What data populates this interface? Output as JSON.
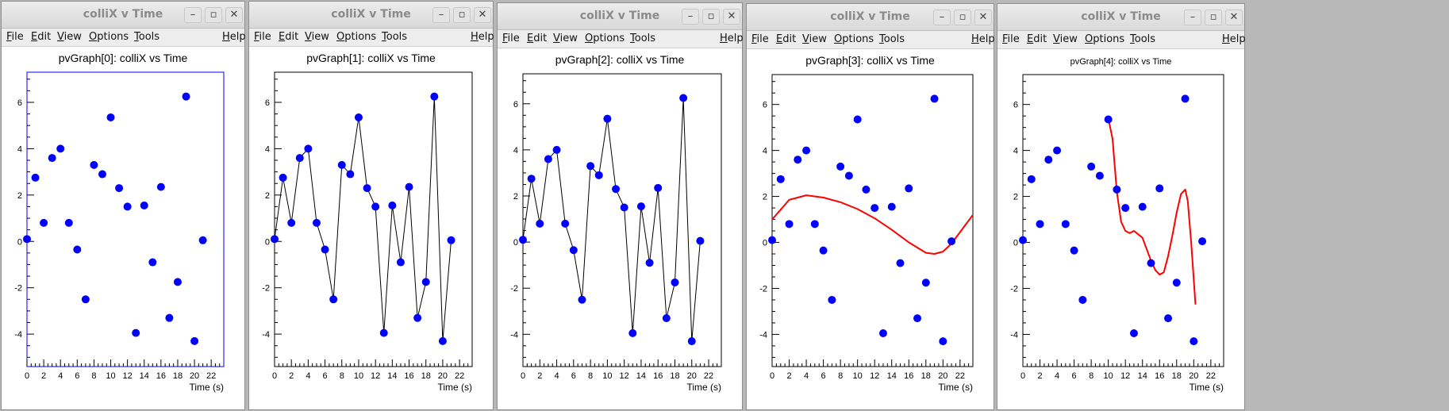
{
  "window_title": "colliX v Time",
  "menu": [
    "File",
    "Edit",
    "View",
    "Options",
    "Tools"
  ],
  "help_label": "Help",
  "controls": {
    "minimize": "–",
    "maximize": "▫",
    "close": "✕"
  },
  "colors": {
    "marker": "#0000ff",
    "fit": "#ff0000",
    "line": "#000000",
    "frame_blue": "#0000ff"
  },
  "panels": [
    {
      "title": "pvGraph[0]: colliX vs Time",
      "style": "markers-frame-blue"
    },
    {
      "title": "pvGraph[1]: colliX vs Time",
      "style": "markers-line"
    },
    {
      "title": "pvGraph[2]: colliX vs Time",
      "style": "markers-line"
    },
    {
      "title": "pvGraph[3]: colliX vs Time",
      "style": "markers-fit"
    },
    {
      "title": "pvGraph[4]: colliX vs Time",
      "style": "markers-fit"
    }
  ],
  "chart_data": {
    "type": "scatter",
    "x": [
      0,
      1,
      2,
      3,
      4,
      5,
      6,
      7,
      8,
      9,
      10,
      11,
      12,
      13,
      14,
      15,
      16,
      17,
      18,
      19,
      20,
      21
    ],
    "y": [
      0.1,
      2.75,
      0.8,
      3.6,
      4.0,
      0.8,
      -0.35,
      -2.5,
      3.3,
      2.9,
      5.35,
      2.3,
      1.5,
      -3.95,
      1.55,
      -0.9,
      2.35,
      -3.3,
      -1.75,
      6.25,
      -4.3,
      0.05
    ],
    "xlabel": "Time (s)",
    "xlim": [
      0,
      23.5
    ],
    "ylim": [
      -5.4,
      7.3
    ],
    "xticks": [
      0,
      2,
      4,
      6,
      8,
      10,
      12,
      14,
      16,
      18,
      20,
      22
    ],
    "yticks": [
      -4,
      -2,
      0,
      2,
      4,
      6
    ],
    "fits": [
      {
        "panel": 3,
        "x": [
          0,
          2,
          4,
          6,
          8,
          10,
          12,
          14,
          16,
          18,
          19,
          20,
          21,
          22,
          23.5
        ],
        "y": [
          1.0,
          1.85,
          2.05,
          1.95,
          1.75,
          1.45,
          1.05,
          0.55,
          0.0,
          -0.45,
          -0.5,
          -0.4,
          -0.05,
          0.45,
          1.2
        ]
      },
      {
        "panel": 4,
        "x": [
          10,
          10.5,
          11,
          11.5,
          12,
          12.5,
          13,
          14,
          15,
          15.5,
          16,
          16.5,
          17,
          17.5,
          18,
          18.5,
          19,
          19.3,
          19.7,
          20,
          20.2
        ],
        "y": [
          5.4,
          4.5,
          2.2,
          0.9,
          0.5,
          0.4,
          0.5,
          0.2,
          -0.8,
          -1.2,
          -1.4,
          -1.3,
          -0.6,
          0.3,
          1.3,
          2.1,
          2.3,
          1.8,
          0.0,
          -1.6,
          -2.7
        ]
      }
    ]
  }
}
